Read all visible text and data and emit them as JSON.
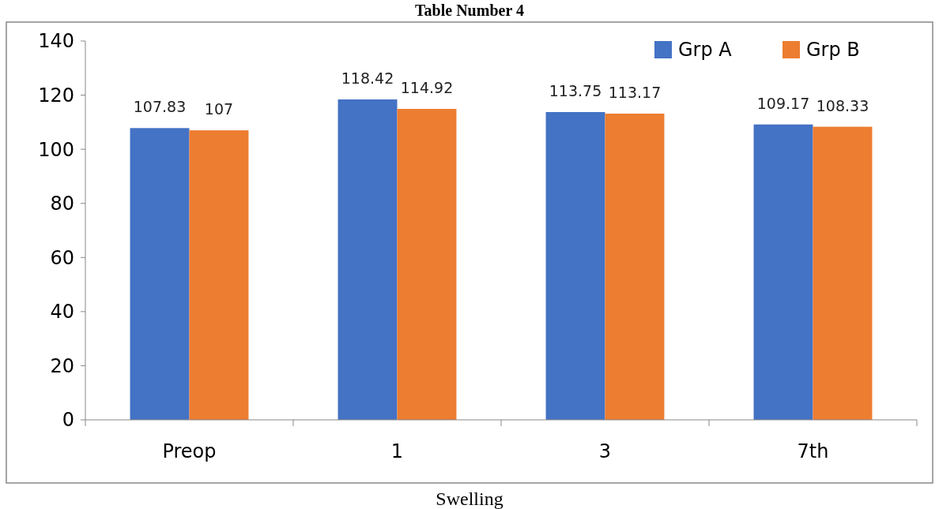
{
  "chart_data": {
    "type": "bar",
    "title": "Table Number 4",
    "xlabel": "Swelling",
    "categories": [
      "Preop",
      "1",
      "3",
      "7th"
    ],
    "series": [
      {
        "name": "Grp A",
        "color": "#4472c4",
        "values": [
          107.83,
          118.42,
          113.75,
          109.17
        ]
      },
      {
        "name": "Grp B",
        "color": "#ed7d31",
        "values": [
          107,
          114.92,
          113.17,
          108.33
        ]
      }
    ],
    "ylim": [
      0,
      140
    ],
    "yticks": [
      0,
      20,
      40,
      60,
      80,
      100,
      120,
      140
    ],
    "data_labels": true,
    "legend": "top right",
    "grid": false
  }
}
